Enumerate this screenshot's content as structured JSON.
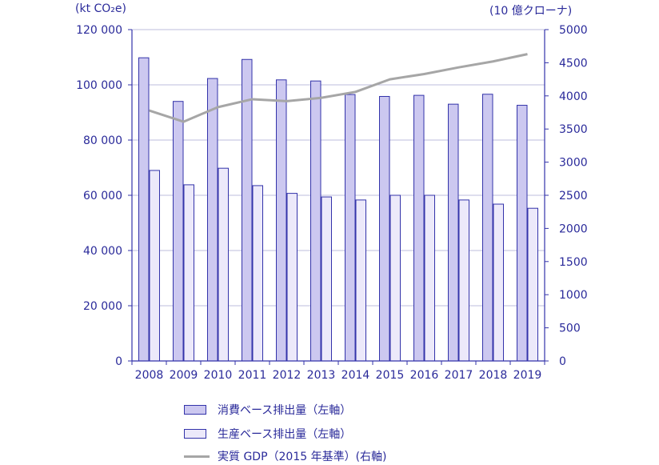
{
  "chart_data": {
    "type": "bar",
    "left_unit": "(kt CO₂e)",
    "right_unit": "(10 億クローナ)",
    "categories": [
      "2008",
      "2009",
      "2010",
      "2011",
      "2012",
      "2013",
      "2014",
      "2015",
      "2016",
      "2017",
      "2018",
      "2019"
    ],
    "series": [
      {
        "name": "消費ベース排出量（左軸）",
        "axis": "left",
        "kind": "bar",
        "color": "#ccc8f0",
        "values": [
          109800,
          94000,
          102300,
          109200,
          101800,
          101400,
          96500,
          95800,
          96200,
          93000,
          96600,
          92600
        ]
      },
      {
        "name": "生産ベース排出量（左軸）",
        "axis": "left",
        "kind": "bar",
        "color": "#ece9fa",
        "values": [
          69000,
          63800,
          69800,
          63500,
          60700,
          59400,
          58300,
          60000,
          60000,
          58300,
          56800,
          55300
        ]
      },
      {
        "name": "実質 GDP（2015 年基準）(右軸)",
        "axis": "right",
        "kind": "line",
        "color": "#a6a6a6",
        "values": [
          3780,
          3610,
          3830,
          3950,
          3920,
          3970,
          4060,
          4250,
          4330,
          4430,
          4520,
          4630
        ]
      }
    ],
    "left_axis": {
      "min": 0,
      "max": 120000,
      "step": 20000,
      "tick_labels": [
        "0",
        "20 000",
        "40 000",
        "60 000",
        "80 000",
        "100 000",
        "120 000"
      ]
    },
    "right_axis": {
      "min": 0,
      "max": 5000,
      "step": 500,
      "tick_labels": [
        "0",
        "500",
        "1000",
        "1500",
        "2000",
        "2500",
        "3000",
        "3500",
        "4000",
        "4500",
        "5000"
      ]
    },
    "grid": true,
    "legend_position": "bottom",
    "axis_color": "#3333aa",
    "text_color": "#2a2a9a"
  }
}
